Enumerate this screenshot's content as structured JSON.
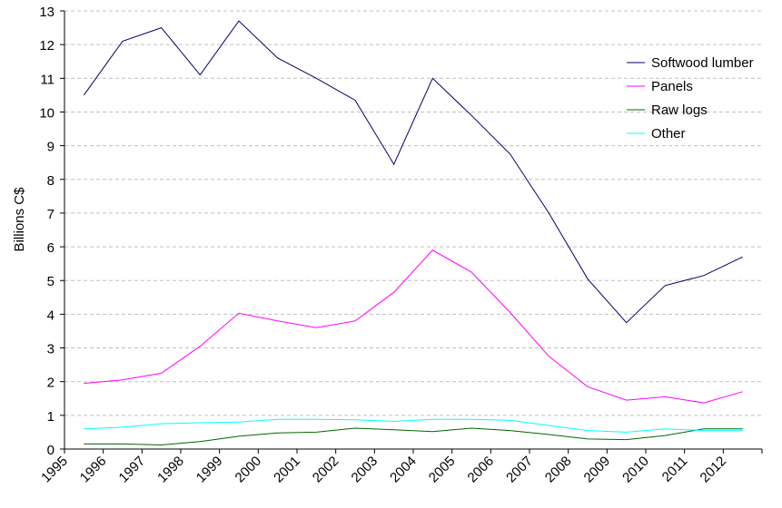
{
  "chart_data": {
    "type": "line",
    "ylabel": "Billions C$",
    "ylim": [
      0,
      13
    ],
    "yticks": [
      0,
      1,
      2,
      3,
      4,
      5,
      6,
      7,
      8,
      9,
      10,
      11,
      12,
      13
    ],
    "xticks": [
      "1995",
      "1996",
      "1997",
      "1998",
      "1999",
      "2000",
      "2001",
      "2002",
      "2003",
      "2004",
      "2005",
      "2006",
      "2007",
      "2008",
      "2009",
      "2010",
      "2011",
      "2012"
    ],
    "grid": true,
    "legend": "top-right",
    "x": [
      1995,
      1996,
      1997,
      1998,
      1999,
      2000,
      2001,
      2002,
      2003,
      2004,
      2005,
      2006,
      2007,
      2008,
      2009,
      2010,
      2011,
      2012
    ],
    "series": [
      {
        "name": "Softwood lumber",
        "color": "#000066",
        "values": [
          10.5,
          12.1,
          12.5,
          11.1,
          12.7,
          11.6,
          11.0,
          10.35,
          8.45,
          11.0,
          9.9,
          8.75,
          7.0,
          5.05,
          3.75,
          4.85,
          5.15,
          5.7
        ]
      },
      {
        "name": "Panels",
        "color": "#ff00ff",
        "values": [
          1.95,
          2.05,
          2.25,
          3.05,
          4.03,
          3.8,
          3.6,
          3.8,
          4.65,
          5.9,
          5.25,
          4.05,
          2.75,
          1.85,
          1.45,
          1.55,
          1.37,
          1.7
        ]
      },
      {
        "name": "Raw logs",
        "color": "#006600",
        "values": [
          0.15,
          0.15,
          0.12,
          0.22,
          0.38,
          0.48,
          0.5,
          0.62,
          0.57,
          0.52,
          0.62,
          0.55,
          0.43,
          0.3,
          0.28,
          0.4,
          0.6,
          0.6
        ]
      },
      {
        "name": "Other",
        "color": "#00ffff",
        "values": [
          0.6,
          0.65,
          0.75,
          0.78,
          0.8,
          0.88,
          0.88,
          0.87,
          0.82,
          0.88,
          0.88,
          0.85,
          0.7,
          0.55,
          0.5,
          0.6,
          0.55,
          0.55
        ]
      }
    ]
  }
}
